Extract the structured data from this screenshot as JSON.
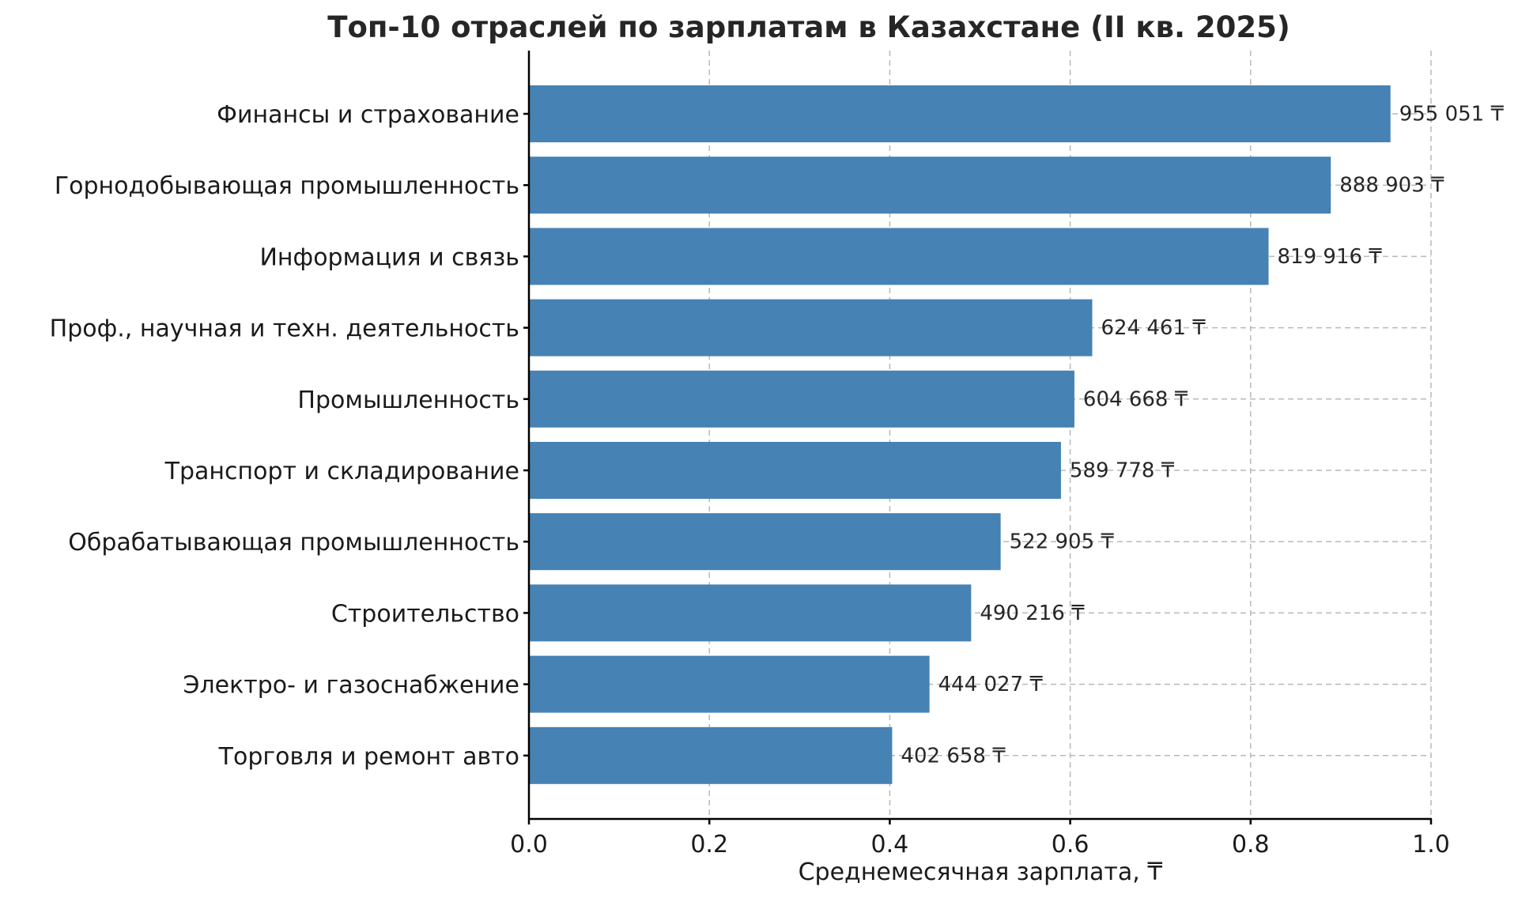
{
  "chart_data": {
    "type": "bar",
    "orientation": "horizontal",
    "title": "Топ-10 отраслей по зарплатам в Казахстане (II кв. 2025)",
    "xlabel": "Среднемесячная зарплата, ₸",
    "ylabel": "",
    "xlim": [
      0,
      1.0
    ],
    "xticks": [
      "0.0",
      "0.2",
      "0.4",
      "0.6",
      "0.8",
      "1.0"
    ],
    "grid": true,
    "bar_color": "#4682b4",
    "categories": [
      "Финансы и страхование",
      "Горнодобывающая промышленность",
      "Информация и связь",
      "Проф., научная и техн. деятельность",
      "Промышленность",
      "Транспорт и складирование",
      "Обрабатывающая промышленность",
      "Строительство",
      "Электро- и газоснабжение",
      "Торговля и ремонт авто"
    ],
    "values": [
      955051,
      888903,
      819916,
      624461,
      604668,
      589778,
      522905,
      490216,
      444027,
      402658
    ],
    "value_labels": [
      "955 051 ₸",
      "888 903 ₸",
      "819 916 ₸",
      "624 461 ₸",
      "604 668 ₸",
      "589 778 ₸",
      "522 905 ₸",
      "490 216 ₸",
      "444 027 ₸",
      "402 658 ₸"
    ],
    "axis_scale_multiplier": 1000000
  }
}
